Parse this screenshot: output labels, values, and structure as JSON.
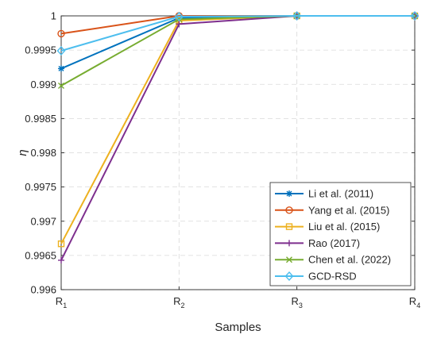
{
  "chart_data": {
    "type": "line",
    "xlabel": "Samples",
    "ylabel": "η",
    "categories": [
      {
        "base": "R",
        "sub": "1"
      },
      {
        "base": "R",
        "sub": "2"
      },
      {
        "base": "R",
        "sub": "3"
      },
      {
        "base": "R",
        "sub": "4"
      }
    ],
    "ylim": [
      0.996,
      1.0
    ],
    "yticks": [
      "0.996",
      "0.9965",
      "0.997",
      "0.9975",
      "0.998",
      "0.9985",
      "0.999",
      "0.9995",
      "1"
    ],
    "grid": true,
    "legend_position": "bottom-right",
    "series": [
      {
        "name": "Li et al. (2011)",
        "color": "#0072BD",
        "marker": "asterisk",
        "values": [
          0.99923,
          0.99997,
          1.0,
          1.0
        ]
      },
      {
        "name": "Yang et al. (2015)",
        "color": "#D95319",
        "marker": "circle",
        "values": [
          0.99974,
          1.0,
          1.0,
          1.0
        ]
      },
      {
        "name": "Liu et al. (2015)",
        "color": "#EDB120",
        "marker": "square",
        "values": [
          0.99667,
          0.99993,
          1.0,
          1.0
        ]
      },
      {
        "name": "Rao (2017)",
        "color": "#7E2F8E",
        "marker": "plus",
        "values": [
          0.99643,
          0.99988,
          1.0,
          1.0
        ]
      },
      {
        "name": "Chen et al. (2022)",
        "color": "#77AC30",
        "marker": "x",
        "values": [
          0.99898,
          0.99995,
          1.0,
          1.0
        ]
      },
      {
        "name": "GCD-RSD",
        "color": "#4DBEEE",
        "marker": "diamond",
        "values": [
          0.99949,
          0.99999,
          1.0,
          1.0
        ]
      }
    ]
  }
}
